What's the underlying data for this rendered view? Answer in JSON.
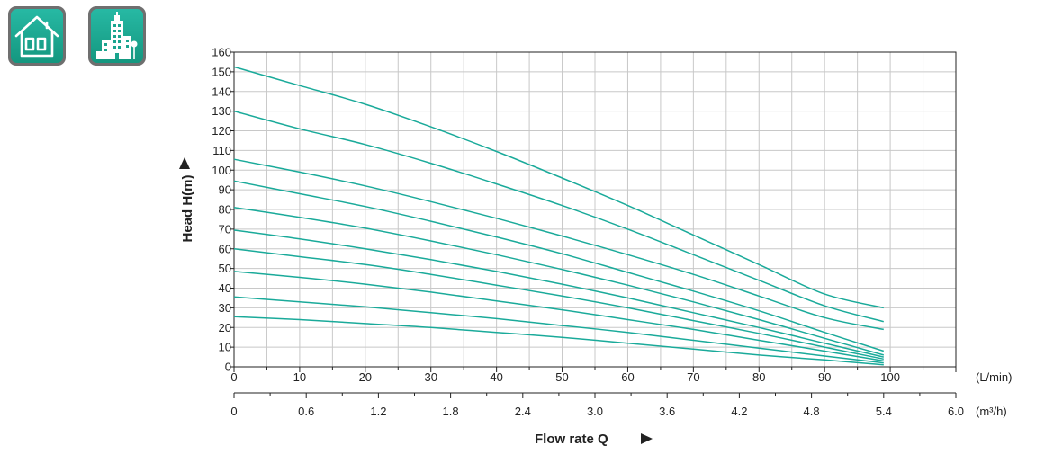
{
  "icons": [
    {
      "name": "house-icon"
    },
    {
      "name": "building-icon"
    }
  ],
  "chart_data": {
    "type": "line",
    "ylabel": "Head H(m)",
    "xlabel": "Flow rate Q",
    "x_unit": "(L/min)",
    "x2_unit": "(m³/h)",
    "ylim": [
      0,
      160
    ],
    "xlim": [
      0,
      110
    ],
    "x2lim": [
      0,
      6.0
    ],
    "y_ticks": [
      0,
      10,
      20,
      30,
      40,
      50,
      60,
      70,
      80,
      90,
      100,
      110,
      120,
      130,
      140,
      150,
      160
    ],
    "x_ticks": [
      0,
      10,
      20,
      30,
      40,
      50,
      60,
      70,
      80,
      90,
      100
    ],
    "x2_ticks": [
      "0",
      "0.6",
      "1.2",
      "1.8",
      "2.4",
      "3.0",
      "3.6",
      "4.2",
      "4.8",
      "5.4",
      "6.0"
    ],
    "grid": true,
    "line_color": "#1aaa9a",
    "series": [
      {
        "x": [
          0,
          10,
          20,
          30,
          40,
          50,
          60,
          70,
          80,
          90,
          99
        ],
        "y": [
          152.5,
          143,
          133.5,
          122,
          109.5,
          96,
          82,
          67,
          52,
          37,
          30
        ]
      },
      {
        "x": [
          0,
          10,
          20,
          30,
          40,
          50,
          60,
          70,
          80,
          90,
          99
        ],
        "y": [
          130,
          121,
          113,
          103.5,
          93,
          82,
          70,
          57,
          44,
          31,
          23
        ]
      },
      {
        "x": [
          0,
          10,
          20,
          30,
          40,
          50,
          60,
          70,
          80,
          90,
          99
        ],
        "y": [
          105.5,
          99,
          92,
          84,
          75.5,
          66.5,
          57,
          47,
          36,
          25,
          19
        ]
      },
      {
        "x": [
          0,
          10,
          20,
          30,
          40,
          50,
          60,
          70,
          80,
          90,
          99
        ],
        "y": [
          94.5,
          88,
          81.5,
          74,
          66,
          57.5,
          48,
          38.5,
          28.5,
          17.5,
          8
        ]
      },
      {
        "x": [
          0,
          10,
          20,
          30,
          40,
          50,
          60,
          70,
          80,
          90,
          99
        ],
        "y": [
          81,
          76,
          70.5,
          64,
          57,
          49.5,
          41.5,
          33,
          24,
          14.5,
          6
        ]
      },
      {
        "x": [
          0,
          10,
          20,
          30,
          40,
          50,
          60,
          70,
          80,
          90,
          99
        ],
        "y": [
          69.5,
          65,
          60,
          54.5,
          48.5,
          42,
          35,
          27.5,
          20,
          12,
          5
        ]
      },
      {
        "x": [
          0,
          10,
          20,
          30,
          40,
          50,
          60,
          70,
          80,
          90,
          99
        ],
        "y": [
          60,
          56,
          52,
          47,
          41.5,
          36,
          30,
          23.5,
          17,
          10,
          4
        ]
      },
      {
        "x": [
          0,
          10,
          20,
          30,
          40,
          50,
          60,
          70,
          80,
          90,
          99
        ],
        "y": [
          48.5,
          45.5,
          42,
          38,
          33.5,
          29,
          24,
          19,
          13.5,
          8,
          3
        ]
      },
      {
        "x": [
          0,
          10,
          20,
          30,
          40,
          50,
          60,
          70,
          80,
          90,
          99
        ],
        "y": [
          35.5,
          33,
          30.5,
          27.5,
          24.5,
          21,
          17.5,
          13.5,
          9.5,
          5.5,
          2
        ]
      },
      {
        "x": [
          0,
          10,
          20,
          30,
          40,
          50,
          60,
          70,
          80,
          90,
          99
        ],
        "y": [
          25.5,
          24,
          22,
          20,
          17.5,
          15,
          12,
          9,
          6,
          3.5,
          1
        ]
      }
    ]
  }
}
